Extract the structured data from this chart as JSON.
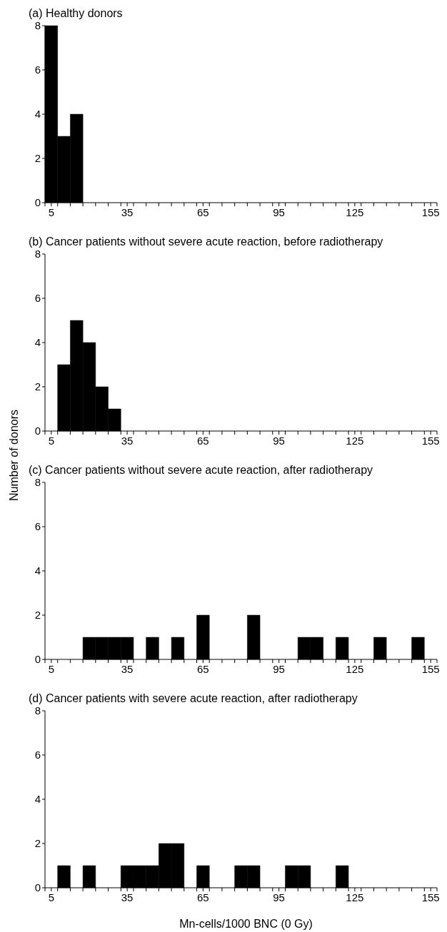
{
  "chart_data": [
    {
      "type": "histogram",
      "title": "(a) Healthy donors",
      "bins": [
        2.5,
        7.5,
        12.5,
        17.5,
        22.5,
        27.5,
        32.5,
        37.5,
        42.5,
        47.5,
        52.5,
        57.5,
        62.5,
        67.5,
        72.5,
        77.5,
        82.5,
        87.5,
        92.5,
        97.5,
        102.5,
        107.5,
        112.5,
        117.5,
        122.5,
        127.5,
        132.5,
        137.5,
        142.5,
        147.5,
        152.5,
        157.5
      ],
      "values": [
        8,
        3,
        4,
        0,
        0,
        0,
        0,
        0,
        0,
        0,
        0,
        0,
        0,
        0,
        0,
        0,
        0,
        0,
        0,
        0,
        0,
        0,
        0,
        0,
        0,
        0,
        0,
        0,
        0,
        0,
        0
      ],
      "color": "#000000",
      "xlim": [
        2.5,
        157.5
      ],
      "ylim": [
        0,
        8
      ],
      "yticks": [
        0,
        2,
        4,
        6,
        8
      ],
      "xticks": [
        5,
        35,
        65,
        95,
        125,
        155,
        {
          "value": 2.5,
          "label": null
        },
        {
          "value": 7.5,
          "label": null
        },
        {
          "value": 12.5,
          "label": null
        },
        {
          "value": 17.5,
          "label": null
        },
        {
          "value": 22.5,
          "label": null
        },
        {
          "value": 27.5,
          "label": null
        },
        {
          "value": 32.5,
          "label": null
        },
        {
          "value": 37.5,
          "label": null
        },
        {
          "value": 42.5,
          "label": null
        },
        {
          "value": 47.5,
          "label": null
        },
        {
          "value": 52.5,
          "label": null
        },
        {
          "value": 57.5,
          "label": null
        },
        {
          "value": 62.5,
          "label": null
        },
        {
          "value": 67.5,
          "label": null
        },
        {
          "value": 72.5,
          "label": null
        },
        {
          "value": 77.5,
          "label": null
        },
        {
          "value": 82.5,
          "label": null
        },
        {
          "value": 87.5,
          "label": null
        },
        {
          "value": 92.5,
          "label": null
        },
        {
          "value": 97.5,
          "label": null
        },
        {
          "value": 102.5,
          "label": null
        },
        {
          "value": 107.5,
          "label": null
        },
        {
          "value": 112.5,
          "label": null
        },
        {
          "value": 117.5,
          "label": null
        },
        {
          "value": 122.5,
          "label": null
        },
        {
          "value": 127.5,
          "label": null
        },
        {
          "value": 132.5,
          "label": null
        },
        {
          "value": 137.5,
          "label": null
        },
        {
          "value": 142.5,
          "label": null
        },
        {
          "value": 147.5,
          "label": null
        },
        {
          "value": 152.5,
          "label": null
        },
        {
          "value": 157.5,
          "label": null
        }
      ]
    },
    {
      "type": "histogram",
      "title": "(b) Cancer patients without severe acute reaction, before radiotherapy",
      "ylabel": "Number of donors",
      "bins": [
        2.5,
        7.5,
        12.5,
        17.5,
        22.5,
        27.5,
        32.5,
        37.5,
        42.5,
        47.5,
        52.5,
        57.5,
        62.5,
        67.5,
        72.5,
        77.5,
        82.5,
        87.5,
        92.5,
        97.5,
        102.5,
        107.5,
        112.5,
        117.5,
        122.5,
        127.5,
        132.5,
        137.5,
        142.5,
        147.5,
        152.5,
        157.5
      ],
      "values": [
        0,
        3,
        5,
        4,
        2,
        1,
        0,
        0,
        0,
        0,
        0,
        0,
        0,
        0,
        0,
        0,
        0,
        0,
        0,
        0,
        0,
        0,
        0,
        0,
        0,
        0,
        0,
        0,
        0,
        0,
        0
      ],
      "color": "#000000",
      "xlim": [
        2.5,
        157.5
      ],
      "ylim": [
        0,
        8
      ],
      "yticks": [
        0,
        2,
        4,
        6,
        8
      ],
      "xticks": [
        5,
        35,
        65,
        95,
        125,
        155,
        {
          "value": 2.5,
          "label": null
        },
        {
          "value": 7.5,
          "label": null
        },
        {
          "value": 12.5,
          "label": null
        },
        {
          "value": 17.5,
          "label": null
        },
        {
          "value": 22.5,
          "label": null
        },
        {
          "value": 27.5,
          "label": null
        },
        {
          "value": 32.5,
          "label": null
        },
        {
          "value": 37.5,
          "label": null
        },
        {
          "value": 42.5,
          "label": null
        },
        {
          "value": 47.5,
          "label": null
        },
        {
          "value": 52.5,
          "label": null
        },
        {
          "value": 57.5,
          "label": null
        },
        {
          "value": 62.5,
          "label": null
        },
        {
          "value": 67.5,
          "label": null
        },
        {
          "value": 72.5,
          "label": null
        },
        {
          "value": 77.5,
          "label": null
        },
        {
          "value": 82.5,
          "label": null
        },
        {
          "value": 87.5,
          "label": null
        },
        {
          "value": 92.5,
          "label": null
        },
        {
          "value": 97.5,
          "label": null
        },
        {
          "value": 102.5,
          "label": null
        },
        {
          "value": 107.5,
          "label": null
        },
        {
          "value": 112.5,
          "label": null
        },
        {
          "value": 117.5,
          "label": null
        },
        {
          "value": 122.5,
          "label": null
        },
        {
          "value": 127.5,
          "label": null
        },
        {
          "value": 132.5,
          "label": null
        },
        {
          "value": 137.5,
          "label": null
        },
        {
          "value": 142.5,
          "label": null
        },
        {
          "value": 147.5,
          "label": null
        },
        {
          "value": 152.5,
          "label": null
        },
        {
          "value": 157.5,
          "label": null
        }
      ]
    },
    {
      "type": "histogram",
      "title": "(c) Cancer patients without severe acute reaction, after radiotherapy",
      "bins": [
        2.5,
        7.5,
        12.5,
        17.5,
        22.5,
        27.5,
        32.5,
        37.5,
        42.5,
        47.5,
        52.5,
        57.5,
        62.5,
        67.5,
        72.5,
        77.5,
        82.5,
        87.5,
        92.5,
        97.5,
        102.5,
        107.5,
        112.5,
        117.5,
        122.5,
        127.5,
        132.5,
        137.5,
        142.5,
        147.5,
        152.5,
        157.5
      ],
      "values": [
        0,
        0,
        0,
        1,
        1,
        1,
        1,
        0,
        1,
        0,
        1,
        0,
        2,
        0,
        0,
        0,
        2,
        0,
        0,
        0,
        1,
        1,
        0,
        1,
        0,
        0,
        1,
        0,
        0,
        1,
        0
      ],
      "color": "#000000",
      "xlim": [
        2.5,
        157.5
      ],
      "ylim": [
        0,
        8
      ],
      "yticks": [
        0,
        2,
        4,
        6,
        8
      ],
      "xticks": [
        5,
        35,
        65,
        95,
        125,
        155,
        {
          "value": 2.5,
          "label": null
        },
        {
          "value": 7.5,
          "label": null
        },
        {
          "value": 12.5,
          "label": null
        },
        {
          "value": 17.5,
          "label": null
        },
        {
          "value": 22.5,
          "label": null
        },
        {
          "value": 27.5,
          "label": null
        },
        {
          "value": 32.5,
          "label": null
        },
        {
          "value": 37.5,
          "label": null
        },
        {
          "value": 42.5,
          "label": null
        },
        {
          "value": 47.5,
          "label": null
        },
        {
          "value": 52.5,
          "label": null
        },
        {
          "value": 57.5,
          "label": null
        },
        {
          "value": 62.5,
          "label": null
        },
        {
          "value": 67.5,
          "label": null
        },
        {
          "value": 72.5,
          "label": null
        },
        {
          "value": 77.5,
          "label": null
        },
        {
          "value": 82.5,
          "label": null
        },
        {
          "value": 87.5,
          "label": null
        },
        {
          "value": 92.5,
          "label": null
        },
        {
          "value": 97.5,
          "label": null
        },
        {
          "value": 102.5,
          "label": null
        },
        {
          "value": 107.5,
          "label": null
        },
        {
          "value": 112.5,
          "label": null
        },
        {
          "value": 117.5,
          "label": null
        },
        {
          "value": 122.5,
          "label": null
        },
        {
          "value": 127.5,
          "label": null
        },
        {
          "value": 132.5,
          "label": null
        },
        {
          "value": 137.5,
          "label": null
        },
        {
          "value": 142.5,
          "label": null
        },
        {
          "value": 147.5,
          "label": null
        },
        {
          "value": 152.5,
          "label": null
        },
        {
          "value": 157.5,
          "label": null
        }
      ]
    },
    {
      "type": "histogram",
      "title": "(d) Cancer patients with severe acute reaction, after radiotherapy",
      "xlabel": "Mn-cells/1000 BNC (0 Gy)",
      "bins": [
        2.5,
        7.5,
        12.5,
        17.5,
        22.5,
        27.5,
        32.5,
        37.5,
        42.5,
        47.5,
        52.5,
        57.5,
        62.5,
        67.5,
        72.5,
        77.5,
        82.5,
        87.5,
        92.5,
        97.5,
        102.5,
        107.5,
        112.5,
        117.5,
        122.5,
        127.5,
        132.5,
        137.5,
        142.5,
        147.5,
        152.5,
        157.5
      ],
      "values": [
        0,
        1,
        0,
        1,
        0,
        0,
        1,
        1,
        1,
        2,
        2,
        0,
        1,
        0,
        0,
        1,
        1,
        0,
        0,
        1,
        1,
        0,
        0,
        1,
        0,
        0,
        0,
        0,
        0,
        0,
        0
      ],
      "color": "#000000",
      "xlim": [
        2.5,
        157.5
      ],
      "ylim": [
        0,
        8
      ],
      "yticks": [
        0,
        2,
        4,
        6,
        8
      ],
      "xticks": [
        5,
        35,
        65,
        95,
        125,
        155,
        {
          "value": 2.5,
          "label": null
        },
        {
          "value": 7.5,
          "label": null
        },
        {
          "value": 12.5,
          "label": null
        },
        {
          "value": 17.5,
          "label": null
        },
        {
          "value": 22.5,
          "label": null
        },
        {
          "value": 27.5,
          "label": null
        },
        {
          "value": 32.5,
          "label": null
        },
        {
          "value": 37.5,
          "label": null
        },
        {
          "value": 42.5,
          "label": null
        },
        {
          "value": 47.5,
          "label": null
        },
        {
          "value": 52.5,
          "label": null
        },
        {
          "value": 57.5,
          "label": null
        },
        {
          "value": 62.5,
          "label": null
        },
        {
          "value": 67.5,
          "label": null
        },
        {
          "value": 72.5,
          "label": null
        },
        {
          "value": 77.5,
          "label": null
        },
        {
          "value": 82.5,
          "label": null
        },
        {
          "value": 87.5,
          "label": null
        },
        {
          "value": 92.5,
          "label": null
        },
        {
          "value": 97.5,
          "label": null
        },
        {
          "value": 102.5,
          "label": null
        },
        {
          "value": 107.5,
          "label": null
        },
        {
          "value": 112.5,
          "label": null
        },
        {
          "value": 117.5,
          "label": null
        },
        {
          "value": 122.5,
          "label": null
        },
        {
          "value": 127.5,
          "label": null
        },
        {
          "value": 132.5,
          "label": null
        },
        {
          "value": 137.5,
          "label": null
        },
        {
          "value": 142.5,
          "label": null
        },
        {
          "value": 147.5,
          "label": null
        },
        {
          "value": 152.5,
          "label": null
        },
        {
          "value": 157.5,
          "label": null
        }
      ]
    }
  ]
}
